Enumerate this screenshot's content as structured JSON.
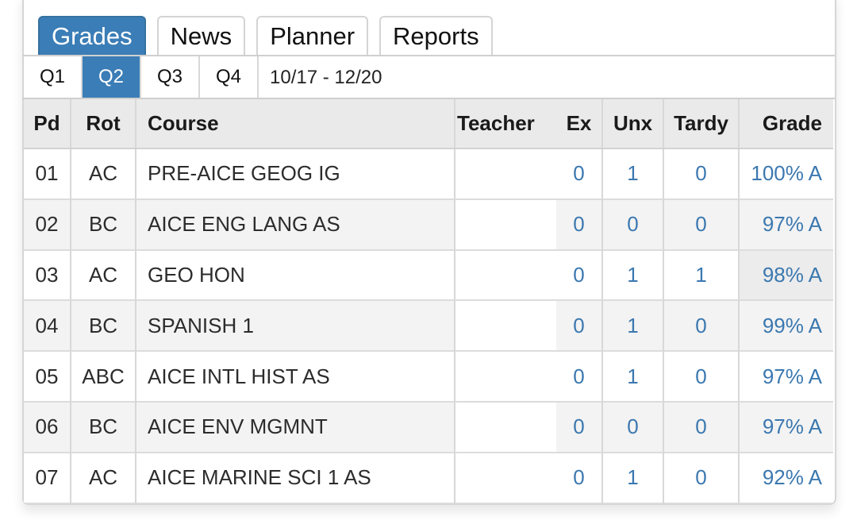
{
  "tabs": [
    {
      "label": "Grades",
      "active": true
    },
    {
      "label": "News",
      "active": false
    },
    {
      "label": "Planner",
      "active": false
    },
    {
      "label": "Reports",
      "active": false
    }
  ],
  "quarters": [
    {
      "label": "Q1",
      "active": false
    },
    {
      "label": "Q2",
      "active": true
    },
    {
      "label": "Q3",
      "active": false
    },
    {
      "label": "Q4",
      "active": false
    }
  ],
  "date_range": "10/17 - 12/20",
  "columns": {
    "pd": "Pd",
    "rot": "Rot",
    "course": "Course",
    "teacher": "Teacher",
    "ex": "Ex",
    "unx": "Unx",
    "tardy": "Tardy",
    "grade": "Grade"
  },
  "rows": [
    {
      "pd": "01",
      "rot": "AC",
      "course": "PRE-AICE GEOG IG",
      "teacher": "",
      "ex": "0",
      "unx": "1",
      "tardy": "0",
      "grade": "100% A"
    },
    {
      "pd": "02",
      "rot": "BC",
      "course": "AICE ENG LANG AS",
      "teacher": "",
      "ex": "0",
      "unx": "0",
      "tardy": "0",
      "grade": "97% A"
    },
    {
      "pd": "03",
      "rot": "AC",
      "course": "GEO HON",
      "teacher": "",
      "ex": "0",
      "unx": "1",
      "tardy": "1",
      "grade": "98% A"
    },
    {
      "pd": "04",
      "rot": "BC",
      "course": "SPANISH 1",
      "teacher": "",
      "ex": "0",
      "unx": "1",
      "tardy": "0",
      "grade": "99% A"
    },
    {
      "pd": "05",
      "rot": "ABC",
      "course": "AICE INTL HIST AS",
      "teacher": "",
      "ex": "0",
      "unx": "1",
      "tardy": "0",
      "grade": "97% A"
    },
    {
      "pd": "06",
      "rot": "BC",
      "course": "AICE ENV MGMNT",
      "teacher": "",
      "ex": "0",
      "unx": "0",
      "tardy": "0",
      "grade": "97% A"
    },
    {
      "pd": "07",
      "rot": "AC",
      "course": "AICE MARINE SCI 1 AS",
      "teacher": "",
      "ex": "0",
      "unx": "1",
      "tardy": "0",
      "grade": "92% A"
    }
  ],
  "colors": {
    "accent": "#3b7db6",
    "link": "#3b78b0"
  }
}
